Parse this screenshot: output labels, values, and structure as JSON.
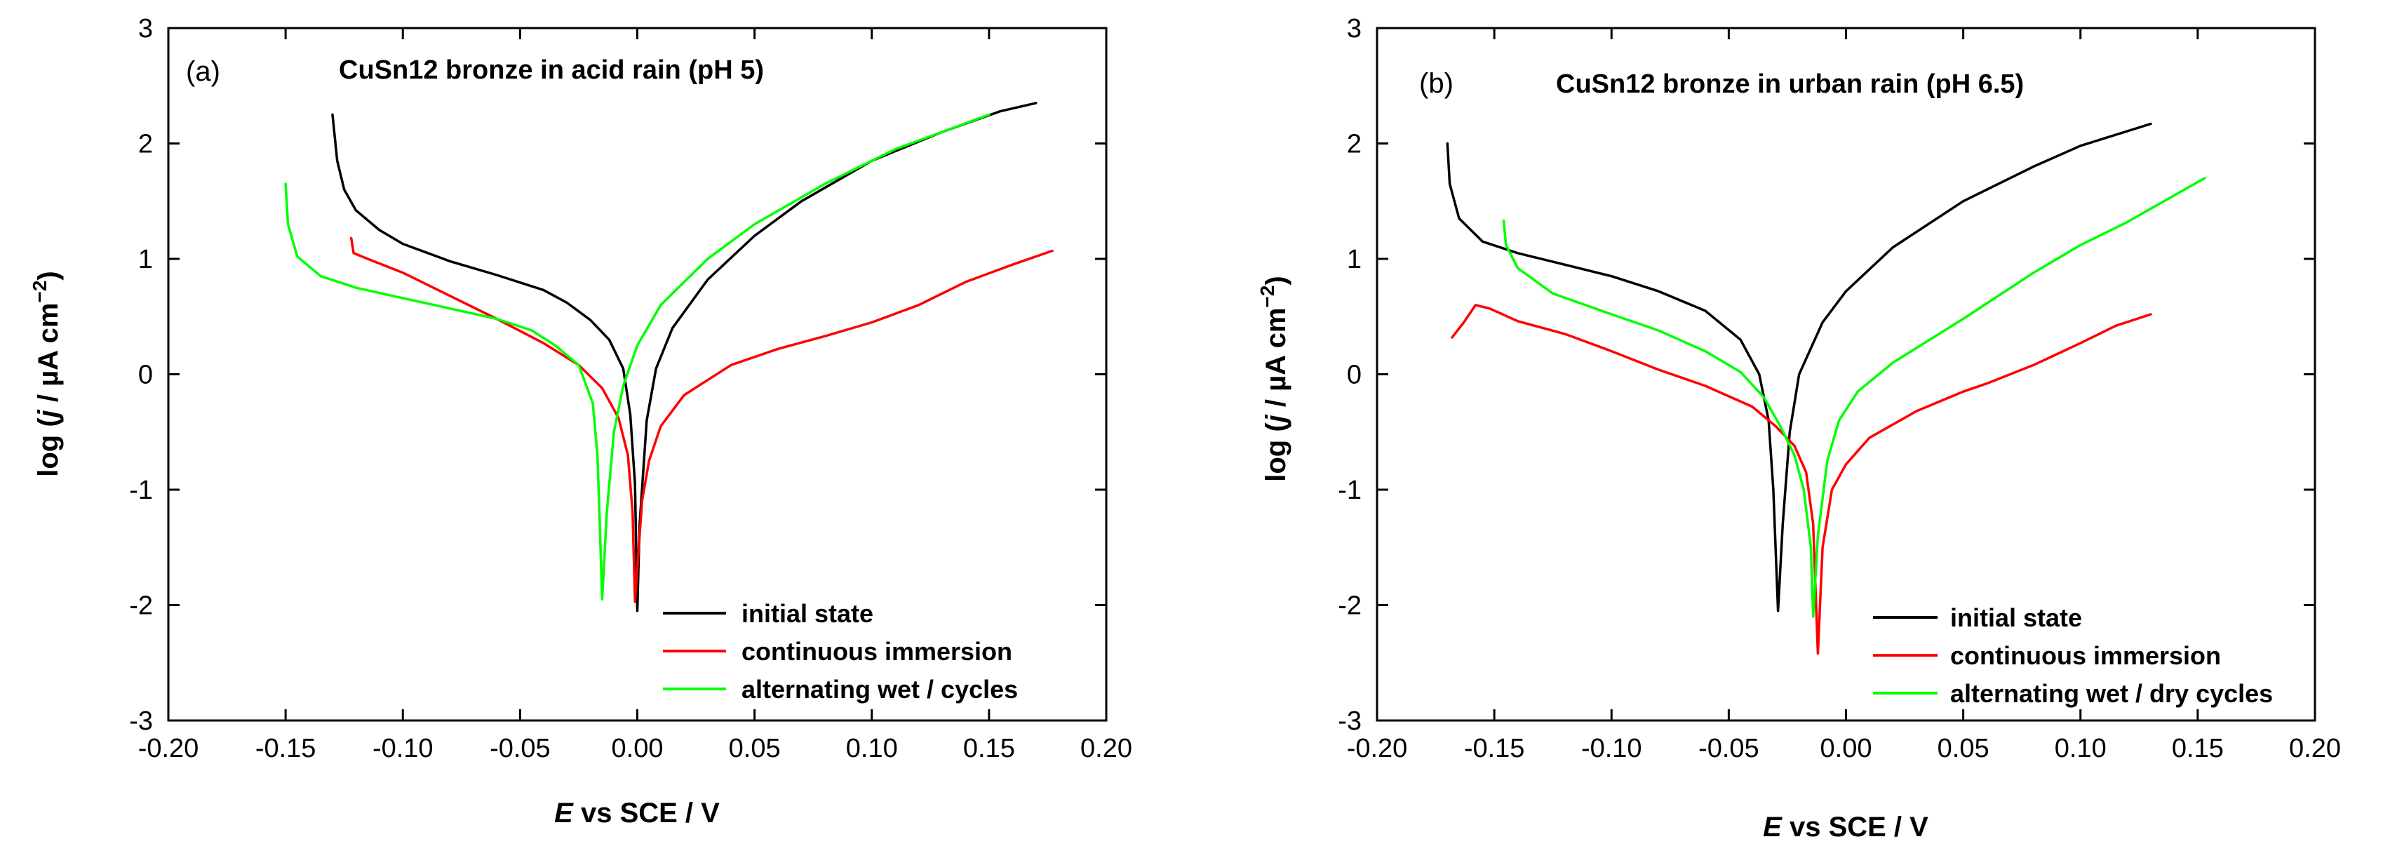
{
  "chart_data": [
    {
      "type": "line",
      "panel_label": "(a)",
      "title": "CuSn12 bronze in acid rain (pH 5)",
      "xlabel_italic": "E",
      "xlabel_rest": " vs SCE / V",
      "ylabel_pre": "log (",
      "ylabel_italic": "j",
      "ylabel_post": " / µA cm",
      "ylabel_sup": "−2",
      "ylabel_close": ")",
      "xlim": [
        -0.2,
        0.2
      ],
      "ylim": [
        -3,
        3
      ],
      "xticks": [
        -0.2,
        -0.15,
        -0.1,
        -0.05,
        0.0,
        0.05,
        0.1,
        0.15,
        0.2
      ],
      "xtick_labels": [
        "-0.20",
        "-0.15",
        "-0.10",
        "-0.05",
        "0.00",
        "0.05",
        "0.10",
        "0.15",
        "0.20"
      ],
      "yticks": [
        -3,
        -2,
        -1,
        0,
        1,
        2,
        3
      ],
      "ytick_labels": [
        "-3",
        "-2",
        "-1",
        "0",
        "1",
        "2",
        "3"
      ],
      "grid": false,
      "legend_position": "bottom-right",
      "series": [
        {
          "name": "initial state",
          "color": "#000000",
          "points": [
            [
              -0.13,
              2.25
            ],
            [
              -0.128,
              1.85
            ],
            [
              -0.125,
              1.6
            ],
            [
              -0.12,
              1.42
            ],
            [
              -0.11,
              1.25
            ],
            [
              -0.1,
              1.13
            ],
            [
              -0.08,
              0.98
            ],
            [
              -0.06,
              0.86
            ],
            [
              -0.04,
              0.73
            ],
            [
              -0.03,
              0.62
            ],
            [
              -0.02,
              0.47
            ],
            [
              -0.012,
              0.3
            ],
            [
              -0.006,
              0.05
            ],
            [
              -0.003,
              -0.35
            ],
            [
              -0.001,
              -0.95
            ],
            [
              0.0,
              -2.05
            ],
            [
              0.001,
              -1.3
            ],
            [
              0.004,
              -0.4
            ],
            [
              0.008,
              0.05
            ],
            [
              0.015,
              0.4
            ],
            [
              0.03,
              0.82
            ],
            [
              0.05,
              1.2
            ],
            [
              0.07,
              1.5
            ],
            [
              0.1,
              1.85
            ],
            [
              0.13,
              2.1
            ],
            [
              0.155,
              2.28
            ],
            [
              0.17,
              2.35
            ]
          ]
        },
        {
          "name": "continuous immersion",
          "color": "#ff0000",
          "points": [
            [
              -0.122,
              1.18
            ],
            [
              -0.121,
              1.05
            ],
            [
              -0.115,
              1.0
            ],
            [
              -0.1,
              0.88
            ],
            [
              -0.08,
              0.68
            ],
            [
              -0.06,
              0.48
            ],
            [
              -0.04,
              0.27
            ],
            [
              -0.025,
              0.08
            ],
            [
              -0.015,
              -0.12
            ],
            [
              -0.008,
              -0.38
            ],
            [
              -0.004,
              -0.7
            ],
            [
              -0.002,
              -1.2
            ],
            [
              -0.001,
              -1.97
            ],
            [
              0.002,
              -1.1
            ],
            [
              0.005,
              -0.75
            ],
            [
              0.01,
              -0.45
            ],
            [
              0.02,
              -0.18
            ],
            [
              0.04,
              0.08
            ],
            [
              0.06,
              0.22
            ],
            [
              0.08,
              0.33
            ],
            [
              0.1,
              0.45
            ],
            [
              0.12,
              0.6
            ],
            [
              0.14,
              0.8
            ],
            [
              0.16,
              0.95
            ],
            [
              0.177,
              1.07
            ]
          ]
        },
        {
          "name": "alternating wet / cycles",
          "color": "#00ff00",
          "points": [
            [
              -0.15,
              1.65
            ],
            [
              -0.149,
              1.3
            ],
            [
              -0.145,
              1.02
            ],
            [
              -0.135,
              0.85
            ],
            [
              -0.12,
              0.75
            ],
            [
              -0.1,
              0.66
            ],
            [
              -0.08,
              0.57
            ],
            [
              -0.06,
              0.48
            ],
            [
              -0.045,
              0.38
            ],
            [
              -0.035,
              0.25
            ],
            [
              -0.025,
              0.08
            ],
            [
              -0.019,
              -0.25
            ],
            [
              -0.017,
              -0.7
            ],
            [
              -0.016,
              -1.3
            ],
            [
              -0.015,
              -1.95
            ],
            [
              -0.013,
              -1.2
            ],
            [
              -0.01,
              -0.5
            ],
            [
              -0.006,
              -0.1
            ],
            [
              0.0,
              0.25
            ],
            [
              0.01,
              0.6
            ],
            [
              0.03,
              1.0
            ],
            [
              0.05,
              1.3
            ],
            [
              0.08,
              1.65
            ],
            [
              0.11,
              1.95
            ],
            [
              0.13,
              2.1
            ],
            [
              0.15,
              2.25
            ]
          ]
        }
      ]
    },
    {
      "type": "line",
      "panel_label": "(b)",
      "title": "CuSn12 bronze in urban rain (pH 6.5)",
      "xlabel_italic": "E",
      "xlabel_rest": " vs SCE / V",
      "ylabel_pre": "log (",
      "ylabel_italic": "j",
      "ylabel_post": " / µA cm",
      "ylabel_sup": "−2",
      "ylabel_close": ")",
      "xlim": [
        -0.2,
        0.2
      ],
      "ylim": [
        -3,
        3
      ],
      "xticks": [
        -0.2,
        -0.15,
        -0.1,
        -0.05,
        0.0,
        0.05,
        0.1,
        0.15,
        0.2
      ],
      "xtick_labels": [
        "-0.20",
        "-0.15",
        "-0.10",
        "-0.05",
        "0.00",
        "0.05",
        "0.10",
        "0.15",
        "0.20"
      ],
      "yticks": [
        -3,
        -2,
        -1,
        0,
        1,
        2,
        3
      ],
      "ytick_labels": [
        "-3",
        "-2",
        "-1",
        "0",
        "1",
        "2",
        "3"
      ],
      "grid": false,
      "legend_position": "bottom-right",
      "series": [
        {
          "name": "initial state",
          "color": "#000000",
          "points": [
            [
              -0.17,
              2.0
            ],
            [
              -0.169,
              1.65
            ],
            [
              -0.165,
              1.35
            ],
            [
              -0.155,
              1.15
            ],
            [
              -0.14,
              1.05
            ],
            [
              -0.12,
              0.95
            ],
            [
              -0.1,
              0.85
            ],
            [
              -0.08,
              0.72
            ],
            [
              -0.06,
              0.55
            ],
            [
              -0.045,
              0.3
            ],
            [
              -0.037,
              0.0
            ],
            [
              -0.033,
              -0.4
            ],
            [
              -0.031,
              -1.0
            ],
            [
              -0.029,
              -2.05
            ],
            [
              -0.027,
              -1.3
            ],
            [
              -0.024,
              -0.5
            ],
            [
              -0.02,
              0.0
            ],
            [
              -0.01,
              0.45
            ],
            [
              0.0,
              0.72
            ],
            [
              0.02,
              1.1
            ],
            [
              0.05,
              1.5
            ],
            [
              0.08,
              1.8
            ],
            [
              0.1,
              1.98
            ],
            [
              0.13,
              2.17
            ]
          ]
        },
        {
          "name": "continuous immersion",
          "color": "#ff0000",
          "points": [
            [
              -0.168,
              0.32
            ],
            [
              -0.163,
              0.45
            ],
            [
              -0.158,
              0.6
            ],
            [
              -0.152,
              0.57
            ],
            [
              -0.14,
              0.46
            ],
            [
              -0.12,
              0.35
            ],
            [
              -0.1,
              0.2
            ],
            [
              -0.08,
              0.04
            ],
            [
              -0.06,
              -0.1
            ],
            [
              -0.04,
              -0.28
            ],
            [
              -0.03,
              -0.45
            ],
            [
              -0.022,
              -0.62
            ],
            [
              -0.017,
              -0.85
            ],
            [
              -0.014,
              -1.3
            ],
            [
              -0.012,
              -2.42
            ],
            [
              -0.01,
              -1.5
            ],
            [
              -0.006,
              -1.0
            ],
            [
              0.0,
              -0.78
            ],
            [
              0.01,
              -0.55
            ],
            [
              0.03,
              -0.32
            ],
            [
              0.05,
              -0.15
            ],
            [
              0.06,
              -0.08
            ],
            [
              0.08,
              0.08
            ],
            [
              0.1,
              0.27
            ],
            [
              0.115,
              0.42
            ],
            [
              0.13,
              0.52
            ]
          ]
        },
        {
          "name": "alternating wet / dry cycles",
          "color": "#00ff00",
          "points": [
            [
              -0.146,
              1.33
            ],
            [
              -0.145,
              1.12
            ],
            [
              -0.14,
              0.92
            ],
            [
              -0.125,
              0.7
            ],
            [
              -0.1,
              0.52
            ],
            [
              -0.08,
              0.38
            ],
            [
              -0.06,
              0.2
            ],
            [
              -0.045,
              0.02
            ],
            [
              -0.035,
              -0.2
            ],
            [
              -0.028,
              -0.45
            ],
            [
              -0.022,
              -0.7
            ],
            [
              -0.018,
              -1.0
            ],
            [
              -0.015,
              -1.5
            ],
            [
              -0.014,
              -2.1
            ],
            [
              -0.012,
              -1.4
            ],
            [
              -0.008,
              -0.75
            ],
            [
              -0.003,
              -0.4
            ],
            [
              0.005,
              -0.15
            ],
            [
              0.02,
              0.1
            ],
            [
              0.05,
              0.48
            ],
            [
              0.08,
              0.88
            ],
            [
              0.1,
              1.12
            ],
            [
              0.12,
              1.32
            ],
            [
              0.14,
              1.55
            ],
            [
              0.153,
              1.7
            ]
          ]
        }
      ]
    }
  ]
}
